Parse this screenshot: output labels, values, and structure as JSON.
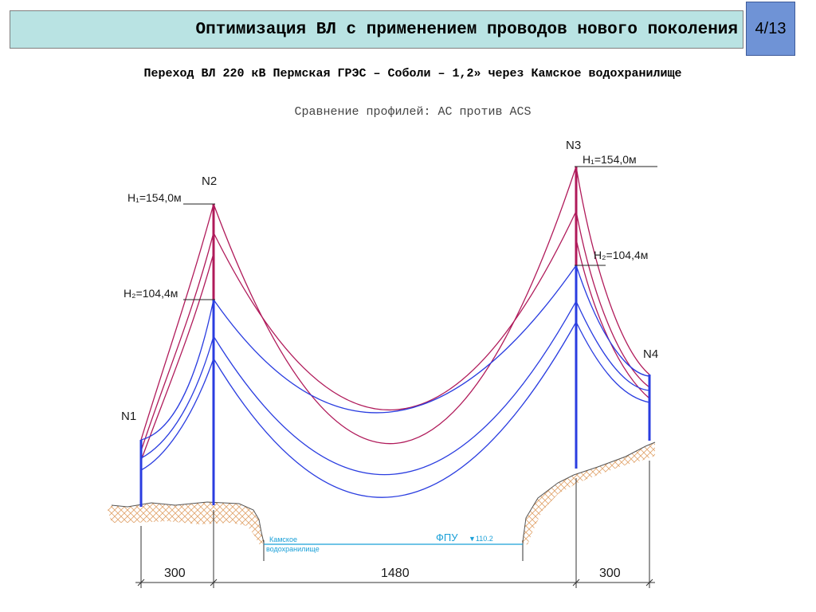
{
  "header": {
    "title": "Оптимизация ВЛ с применением проводов нового поколения",
    "page": "4/13"
  },
  "subtitle": "Переход ВЛ 220 кВ Пермская ГРЭС – Соболи – 1,2» через Камское водохранилище",
  "caption": "Сравнение профилей: АС против ACS",
  "drawing": {
    "towers": {
      "n1": "N1",
      "n2": "N2",
      "n3": "N3",
      "n4": "N4"
    },
    "heights": {
      "n2_h1": "H₁=154,0м",
      "n2_h2": "H₂=104,4м",
      "n3_h1": "H₁=154,0м",
      "n3_h2": "H₂=104,4м"
    },
    "reservoir": {
      "name_line1": "Камское",
      "name_line2": "водохранилище",
      "level_label": "ФПУ",
      "level_mark": "▼110.2"
    },
    "dimensions": {
      "left": "300",
      "middle": "1480",
      "right": "300"
    },
    "colors": {
      "ac_wires": "#b01a5a",
      "acs_wires": "#2a3de0",
      "ground_hatch": "#e0a36b",
      "water": "#1aa0d8"
    }
  }
}
